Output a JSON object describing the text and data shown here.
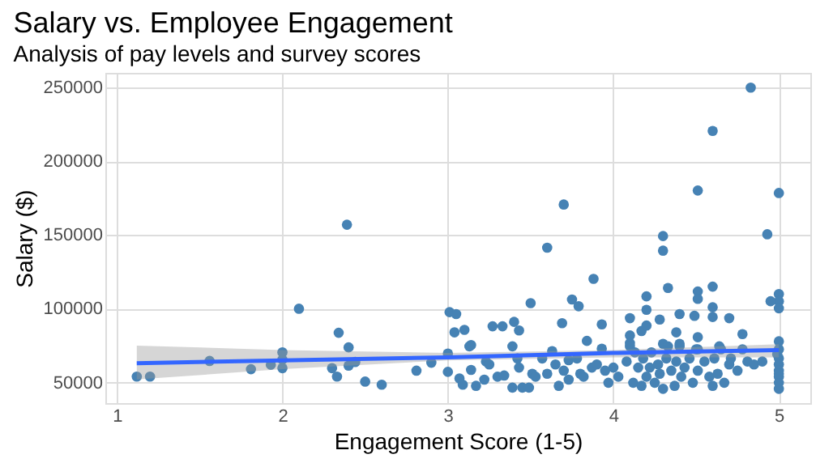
{
  "chart_data": {
    "type": "scatter",
    "title": "Salary vs. Employee Engagement",
    "subtitle": "Analysis of pay levels and survey scores",
    "xlabel": "Engagement Score (1-5)",
    "ylabel": "Salary ($)",
    "xlim": [
      0.93,
      5.19
    ],
    "ylim": [
      36000,
      260000
    ],
    "xticks": [
      1,
      2,
      3,
      4,
      5
    ],
    "yticks": [
      50000,
      100000,
      150000,
      200000,
      250000
    ],
    "grid": true,
    "series": [
      {
        "marker": "circle",
        "color": "#4682b4",
        "x": [
          1.12,
          1.2,
          1.56,
          1.81,
          1.93,
          2.0,
          2.0,
          2.0,
          2.1,
          2.3,
          2.33,
          2.34,
          2.39,
          2.4,
          2.4,
          2.44,
          2.5,
          2.6,
          4.83,
          4.6,
          4.51,
          5.0,
          3.7,
          3.6,
          4.3,
          4.3,
          4.93,
          3.88,
          3.5,
          3.75,
          3.79,
          4.33,
          4.6,
          4.51,
          4.51,
          4.2,
          4.2,
          5.0,
          5.0,
          4.95,
          5.0,
          3.01,
          3.05,
          3.04,
          3.1,
          3.27,
          3.33,
          3.4,
          3.43,
          3.69,
          3.93,
          4.1,
          4.28,
          4.4,
          4.49,
          4.6,
          4.6,
          4.7,
          4.38,
          4.78,
          3.14,
          3.39,
          3.84,
          3.93,
          4.1,
          4.1,
          4.17,
          4.2,
          4.3,
          4.4,
          4.51,
          4.51,
          4.64,
          5.0,
          2.81,
          2.9,
          3.0,
          3.0,
          3.07,
          3.09,
          3.13,
          3.14,
          3.17,
          3.22,
          3.23,
          3.25,
          3.3,
          3.34,
          3.39,
          3.42,
          3.43,
          3.45,
          3.49,
          3.51,
          3.53,
          3.57,
          3.6,
          3.63,
          3.65,
          3.67,
          3.7,
          3.73,
          3.73,
          3.78,
          3.8,
          3.82,
          3.87,
          3.9,
          3.95,
          3.97,
          4.0,
          4.03,
          4.08,
          4.1,
          4.12,
          4.13,
          4.15,
          4.17,
          4.18,
          4.2,
          4.22,
          4.23,
          4.25,
          4.27,
          4.28,
          4.3,
          4.32,
          4.33,
          4.35,
          4.37,
          4.38,
          4.4,
          4.41,
          4.43,
          4.46,
          4.48,
          4.5,
          4.51,
          4.55,
          4.58,
          4.6,
          4.61,
          4.63,
          4.65,
          4.67,
          4.7,
          4.71,
          4.75,
          4.78,
          4.81,
          4.85,
          4.9,
          5.0,
          5.0,
          5.0,
          5.0,
          5.0,
          5.0,
          5.0,
          4.99,
          5.0
        ],
        "values": [
          54000,
          54000,
          64600,
          59000,
          62000,
          70400,
          65500,
          59700,
          100000,
          59700,
          54000,
          83700,
          157000,
          73800,
          61400,
          63900,
          50600,
          48500,
          250000,
          220600,
          180200,
          178500,
          170700,
          141400,
          149300,
          139400,
          150500,
          120300,
          103800,
          106300,
          101700,
          114100,
          115000,
          111700,
          106700,
          108400,
          99300,
          110000,
          105100,
          105100,
          100300,
          97700,
          96400,
          84000,
          85700,
          88100,
          88100,
          91100,
          85300,
          90200,
          89400,
          93600,
          92700,
          96400,
          95200,
          101000,
          94400,
          93600,
          84000,
          82800,
          75400,
          74500,
          78200,
          72900,
          81900,
          76600,
          84900,
          88600,
          76200,
          76200,
          80700,
          72500,
          74500,
          77900,
          58000,
          63400,
          69600,
          57200,
          52700,
          48500,
          74500,
          58500,
          47700,
          51900,
          64200,
          62200,
          53900,
          54700,
          46500,
          66300,
          60100,
          46500,
          46500,
          55900,
          53900,
          66300,
          55900,
          71300,
          62200,
          47700,
          58000,
          65100,
          51900,
          66300,
          55900,
          53900,
          60100,
          62200,
          58000,
          49800,
          60100,
          53900,
          64200,
          74500,
          49800,
          70400,
          60100,
          47700,
          66300,
          53900,
          60100,
          70400,
          49800,
          62200,
          55900,
          45700,
          66300,
          74500,
          58000,
          47700,
          64200,
          74500,
          53900,
          60100,
          66300,
          49800,
          72500,
          58000,
          64200,
          53900,
          47700,
          66300,
          55900,
          72500,
          49800,
          62200,
          66300,
          58000,
          72500,
          64200,
          62200,
          64200,
          66300,
          62200,
          58000,
          53900,
          49800,
          45700,
          72500,
          69200,
          55900
        ]
      },
      {
        "type": "line",
        "line_style": "solid",
        "color": "#3366ff",
        "x": [
          1.12,
          2,
          3,
          4,
          5
        ],
        "values": [
          63000,
          65000,
          67000,
          70000,
          72000
        ],
        "lower": [
          52000,
          59000,
          65000,
          67000,
          67000
        ],
        "upper": [
          75000,
          72000,
          70000,
          72000,
          76000
        ]
      }
    ]
  }
}
